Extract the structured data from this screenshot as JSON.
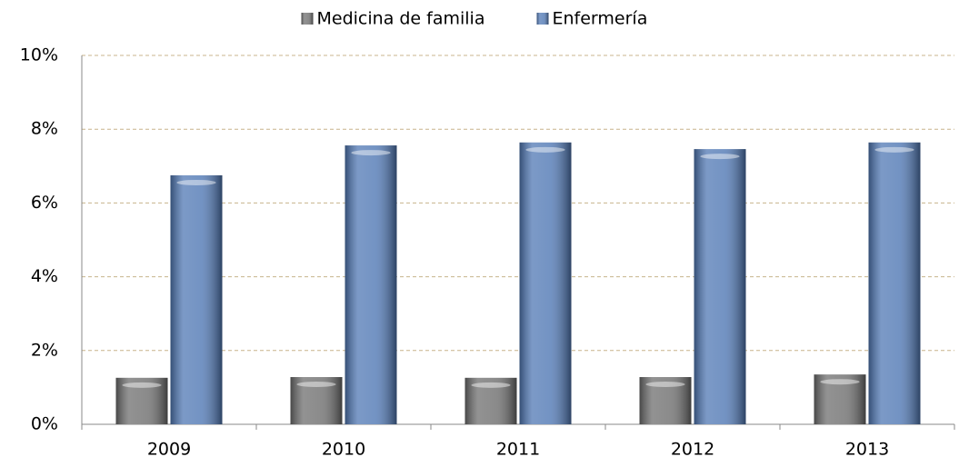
{
  "chart_data": {
    "type": "bar",
    "categories": [
      "2009",
      "2010",
      "2011",
      "2012",
      "2013"
    ],
    "series": [
      {
        "name": "Medicina de familia",
        "color": "#6e6e6e",
        "values": [
          1.26,
          1.28,
          1.26,
          1.28,
          1.35
        ]
      },
      {
        "name": "Enfermería",
        "color": "#5078b4",
        "values": [
          6.75,
          7.56,
          7.64,
          7.46,
          7.64
        ]
      }
    ],
    "ylim": [
      0,
      10
    ],
    "yticks": [
      {
        "value": 0,
        "label": "0%"
      },
      {
        "value": 2,
        "label": "2%"
      },
      {
        "value": 4,
        "label": "4%"
      },
      {
        "value": 6,
        "label": "6%"
      },
      {
        "value": 8,
        "label": "8%"
      },
      {
        "value": 10,
        "label": "10%"
      }
    ],
    "grid": true,
    "legend": "top"
  }
}
